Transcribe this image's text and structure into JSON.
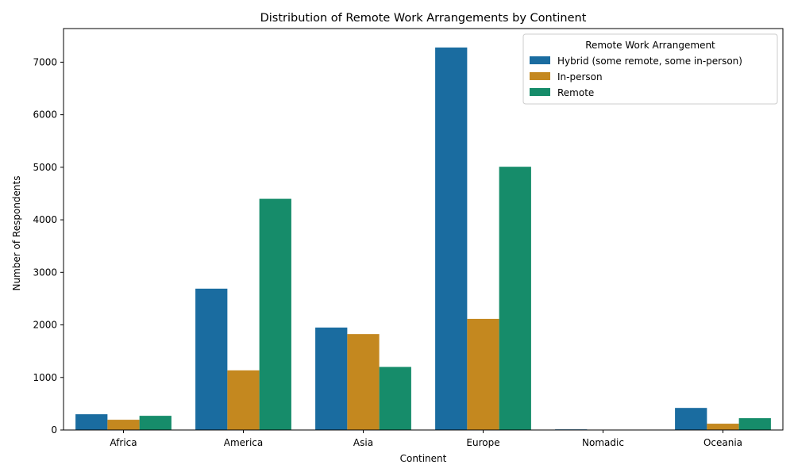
{
  "chart_data": {
    "type": "bar",
    "title": "Distribution of Remote Work Arrangements by Continent",
    "xlabel": "Continent",
    "ylabel": "Number of Respondents",
    "categories": [
      "Africa",
      "America",
      "Asia",
      "Europe",
      "Nomadic",
      "Oceania"
    ],
    "ylim": [
      0,
      7640
    ],
    "yticks": [
      0,
      1000,
      2000,
      3000,
      4000,
      5000,
      6000,
      7000
    ],
    "grid": false,
    "legend": {
      "title": "Remote Work Arrangement",
      "placement": "top-right"
    },
    "series": [
      {
        "name": "Hybrid (some remote, some in-person)",
        "color": "#1a6ca0",
        "values": [
          300,
          2690,
          1950,
          7280,
          12,
          420
        ]
      },
      {
        "name": "In-person",
        "color": "#c4881f",
        "values": [
          195,
          1135,
          1825,
          2115,
          2,
          120
        ]
      },
      {
        "name": "Remote",
        "color": "#168c6a",
        "values": [
          270,
          4400,
          1200,
          5010,
          3,
          225
        ]
      }
    ]
  }
}
